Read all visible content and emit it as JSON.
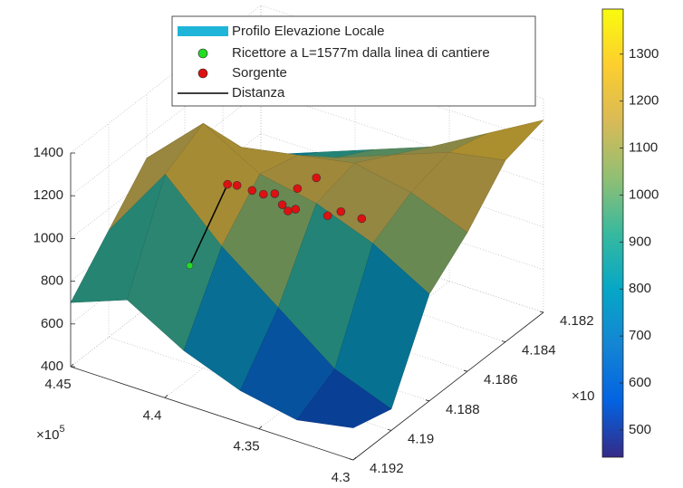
{
  "chart_data": {
    "type": "surface3d",
    "colormap": "parula",
    "grid": true,
    "xlim": [
      430000,
      445000
    ],
    "ylim": [
      4182000,
      4192000
    ],
    "zlim": [
      400,
      1400
    ],
    "clim": [
      442,
      1396
    ],
    "xticks": [
      {
        "value": 430000,
        "label": "4.3"
      },
      {
        "value": 435000,
        "label": "4.35"
      },
      {
        "value": 440000,
        "label": "4.4"
      },
      {
        "value": 445000,
        "label": "4.45"
      }
    ],
    "yticks": [
      {
        "value": 4182000,
        "label": "4.182"
      },
      {
        "value": 4184000,
        "label": "4.184"
      },
      {
        "value": 4186000,
        "label": "4.186"
      },
      {
        "value": 4188000,
        "label": "4.188"
      },
      {
        "value": 4190000,
        "label": "4.19"
      },
      {
        "value": 4192000,
        "label": "4.192"
      }
    ],
    "zticks": [
      400,
      600,
      800,
      1000,
      1200,
      1400
    ],
    "cticks": [
      500,
      600,
      700,
      800,
      900,
      1000,
      1100,
      1200,
      1300
    ],
    "x_exponent": {
      "base": "×10",
      "exp": "5"
    },
    "y_exponent": {
      "base": "×10"
    },
    "surface": {
      "name": "Profilo Elevazione Locale",
      "color": "#1fb5d8",
      "x": [
        445000,
        442000,
        439000,
        436000,
        433000,
        430000
      ],
      "y": [
        4192000,
        4190000,
        4188000,
        4186000,
        4184000,
        4182000
      ],
      "z": [
        [
          700,
          900,
          1100,
          950,
          800,
          700
        ],
        [
          800,
          1250,
          1350,
          1100,
          900,
          800
        ],
        [
          650,
          1000,
          1200,
          1150,
          1000,
          900
        ],
        [
          550,
          800,
          1150,
          1200,
          1100,
          1000
        ],
        [
          500,
          600,
          1050,
          1150,
          1200,
          1150
        ],
        [
          550,
          500,
          900,
          1050,
          1250,
          1300
        ]
      ]
    },
    "receptor": {
      "name": "Ricettore a L=1577m dalla linea di cantiere",
      "color": "#22dd22",
      "x": [
        440800
      ],
      "y": [
        4189900
      ],
      "z": [
        850
      ]
    },
    "sources": {
      "name": "Sorgente",
      "color": "#dd1111",
      "x": [
        439500,
        439200,
        438600,
        438100,
        437600,
        437200,
        437100,
        436800,
        436900,
        436200,
        435600,
        435200,
        434500
      ],
      "y": [
        4189200,
        4189000,
        4188800,
        4188700,
        4188600,
        4188600,
        4188400,
        4188300,
        4188100,
        4187800,
        4187800,
        4187500,
        4187100
      ],
      "z": [
        1220,
        1210,
        1190,
        1180,
        1190,
        1150,
        1110,
        1120,
        1200,
        1250,
        1090,
        1100,
        1060
      ]
    },
    "distance": {
      "name": "Distanza",
      "color": "#000000"
    }
  }
}
